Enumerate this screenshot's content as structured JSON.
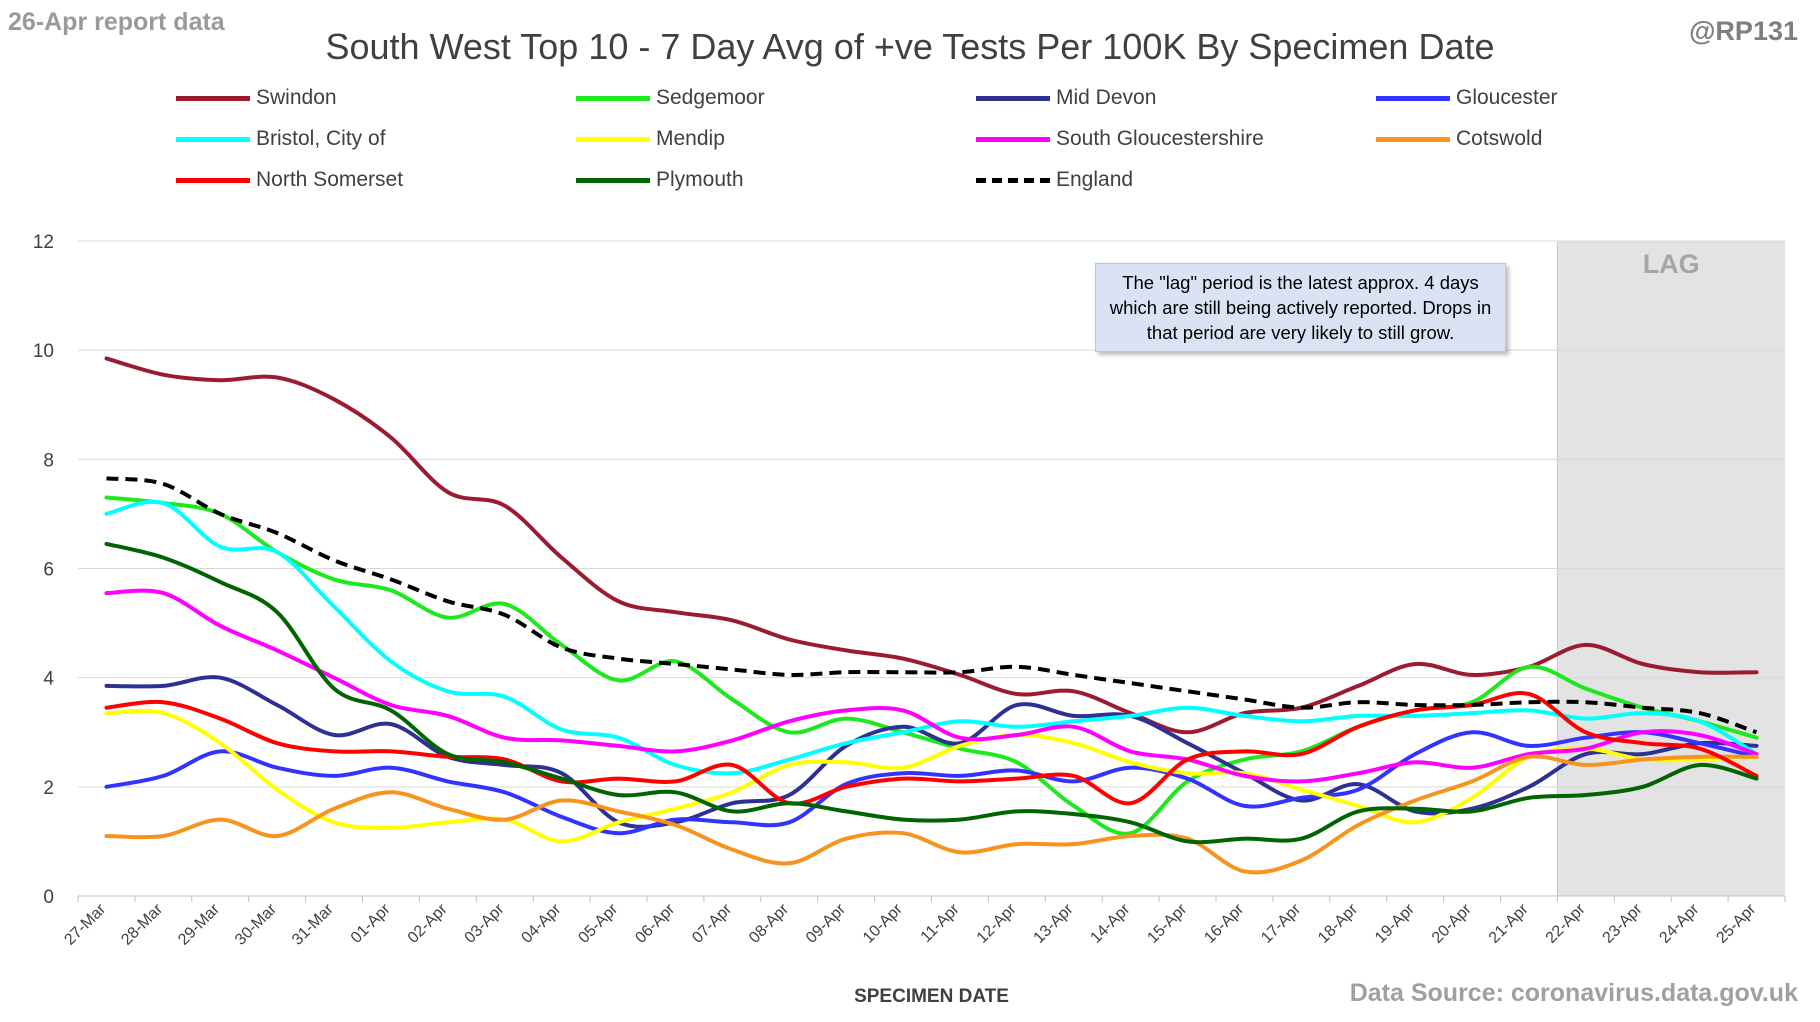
{
  "report_tag": "26-Apr report data",
  "handle": "@RP131",
  "source": "Data Source: coronavirus.data.gov.uk",
  "lag_note": "The \"lag\" period is the latest approx. 4 days which are still being actively reported.  Drops in that period are very likely to still grow.",
  "chart_data": {
    "type": "line",
    "title": "South West Top 10 - 7 Day Avg of +ve Tests Per 100K By Specimen Date",
    "xlabel": "SPECIMEN DATE",
    "ylabel": "",
    "ylim": [
      0,
      12
    ],
    "yticks": [
      0,
      2,
      4,
      6,
      8,
      10,
      12
    ],
    "grid": "horizontal",
    "legend_position": "top",
    "lag_label": "LAG",
    "lag_start": "22-Apr",
    "categories": [
      "27-Mar",
      "28-Mar",
      "29-Mar",
      "30-Mar",
      "31-Mar",
      "01-Apr",
      "02-Apr",
      "03-Apr",
      "04-Apr",
      "05-Apr",
      "06-Apr",
      "07-Apr",
      "08-Apr",
      "09-Apr",
      "10-Apr",
      "11-Apr",
      "12-Apr",
      "13-Apr",
      "14-Apr",
      "15-Apr",
      "16-Apr",
      "17-Apr",
      "18-Apr",
      "19-Apr",
      "20-Apr",
      "21-Apr",
      "22-Apr",
      "23-Apr",
      "24-Apr",
      "25-Apr"
    ],
    "series": [
      {
        "name": "Swindon",
        "color": "#9b1b30",
        "dash": false,
        "values": [
          9.85,
          9.55,
          9.45,
          9.5,
          9.1,
          8.4,
          7.4,
          7.15,
          6.2,
          5.4,
          5.2,
          5.05,
          4.7,
          4.5,
          4.35,
          4.05,
          3.7,
          3.75,
          3.35,
          3.0,
          3.35,
          3.45,
          3.85,
          4.25,
          4.05,
          4.2,
          4.6,
          4.25,
          4.1,
          4.1
        ]
      },
      {
        "name": "Sedgemoor",
        "color": "#1ee81e",
        "dash": false,
        "values": [
          7.3,
          7.2,
          7.0,
          6.3,
          5.8,
          5.6,
          5.1,
          5.35,
          4.6,
          3.95,
          4.3,
          3.6,
          3.0,
          3.25,
          3.0,
          2.7,
          2.45,
          1.65,
          1.15,
          2.1,
          2.5,
          2.65,
          3.1,
          3.4,
          3.55,
          4.2,
          3.8,
          3.45,
          3.2,
          2.9
        ]
      },
      {
        "name": "Mid Devon",
        "color": "#2e3192",
        "dash": false,
        "values": [
          3.85,
          3.85,
          4.0,
          3.5,
          2.95,
          3.15,
          2.55,
          2.4,
          2.25,
          1.35,
          1.35,
          1.7,
          1.85,
          2.75,
          3.1,
          2.8,
          3.5,
          3.3,
          3.3,
          2.8,
          2.25,
          1.75,
          2.05,
          1.55,
          1.6,
          2.0,
          2.6,
          2.6,
          2.8,
          2.75
        ]
      },
      {
        "name": "Gloucester",
        "color": "#3333ff",
        "dash": false,
        "values": [
          2.0,
          2.2,
          2.65,
          2.35,
          2.2,
          2.35,
          2.1,
          1.9,
          1.45,
          1.15,
          1.4,
          1.35,
          1.35,
          2.05,
          2.25,
          2.2,
          2.3,
          2.1,
          2.35,
          2.15,
          1.65,
          1.8,
          1.95,
          2.6,
          3.0,
          2.75,
          2.9,
          3.0,
          2.8,
          2.55
        ]
      },
      {
        "name": "Bristol, City of",
        "color": "#00ffff",
        "dash": false,
        "values": [
          7.0,
          7.2,
          6.4,
          6.3,
          5.3,
          4.3,
          3.75,
          3.65,
          3.05,
          2.9,
          2.4,
          2.25,
          2.5,
          2.8,
          3.0,
          3.2,
          3.1,
          3.2,
          3.3,
          3.45,
          3.3,
          3.2,
          3.3,
          3.3,
          3.35,
          3.4,
          3.25,
          3.35,
          3.2,
          2.6
        ]
      },
      {
        "name": "Mendip",
        "color": "#ffff00",
        "dash": false,
        "values": [
          3.35,
          3.35,
          2.8,
          1.95,
          1.35,
          1.25,
          1.35,
          1.4,
          1.0,
          1.35,
          1.6,
          1.9,
          2.4,
          2.45,
          2.35,
          2.75,
          2.95,
          2.8,
          2.45,
          2.25,
          2.25,
          1.95,
          1.65,
          1.35,
          1.8,
          2.55,
          2.7,
          2.5,
          2.5,
          2.55
        ]
      },
      {
        "name": "South Gloucestershire",
        "color": "#ff00ff",
        "dash": false,
        "values": [
          5.55,
          5.55,
          4.95,
          4.5,
          4.0,
          3.5,
          3.3,
          2.9,
          2.85,
          2.75,
          2.65,
          2.85,
          3.2,
          3.4,
          3.4,
          2.9,
          2.95,
          3.1,
          2.65,
          2.5,
          2.2,
          2.1,
          2.25,
          2.45,
          2.35,
          2.6,
          2.7,
          3.0,
          2.95,
          2.6
        ]
      },
      {
        "name": "Cotswold",
        "color": "#f7941d",
        "dash": false,
        "values": [
          1.1,
          1.1,
          1.4,
          1.1,
          1.6,
          1.9,
          1.6,
          1.4,
          1.75,
          1.55,
          1.3,
          0.85,
          0.6,
          1.05,
          1.15,
          0.8,
          0.95,
          0.95,
          1.1,
          1.05,
          0.45,
          0.65,
          1.3,
          1.75,
          2.1,
          2.55,
          2.4,
          2.5,
          2.55,
          2.55
        ]
      },
      {
        "name": "North Somerset",
        "color": "#ff0000",
        "dash": false,
        "values": [
          3.45,
          3.55,
          3.25,
          2.8,
          2.65,
          2.65,
          2.55,
          2.5,
          2.1,
          2.15,
          2.1,
          2.4,
          1.7,
          2.0,
          2.15,
          2.1,
          2.15,
          2.2,
          1.7,
          2.5,
          2.65,
          2.6,
          3.1,
          3.4,
          3.5,
          3.7,
          3.0,
          2.8,
          2.7,
          2.2
        ]
      },
      {
        "name": "Plymouth",
        "color": "#006400",
        "dash": false,
        "values": [
          6.45,
          6.2,
          5.75,
          5.2,
          3.8,
          3.4,
          2.6,
          2.45,
          2.15,
          1.85,
          1.9,
          1.55,
          1.7,
          1.55,
          1.4,
          1.4,
          1.55,
          1.5,
          1.35,
          1.0,
          1.05,
          1.05,
          1.55,
          1.6,
          1.55,
          1.8,
          1.85,
          2.0,
          2.4,
          2.15
        ]
      },
      {
        "name": "England",
        "color": "#000000",
        "dash": true,
        "values": [
          7.65,
          7.55,
          7.0,
          6.65,
          6.15,
          5.8,
          5.4,
          5.15,
          4.55,
          4.35,
          4.25,
          4.15,
          4.05,
          4.1,
          4.1,
          4.1,
          4.2,
          4.05,
          3.9,
          3.75,
          3.6,
          3.45,
          3.55,
          3.5,
          3.5,
          3.55,
          3.55,
          3.45,
          3.35,
          3.0
        ]
      }
    ]
  }
}
